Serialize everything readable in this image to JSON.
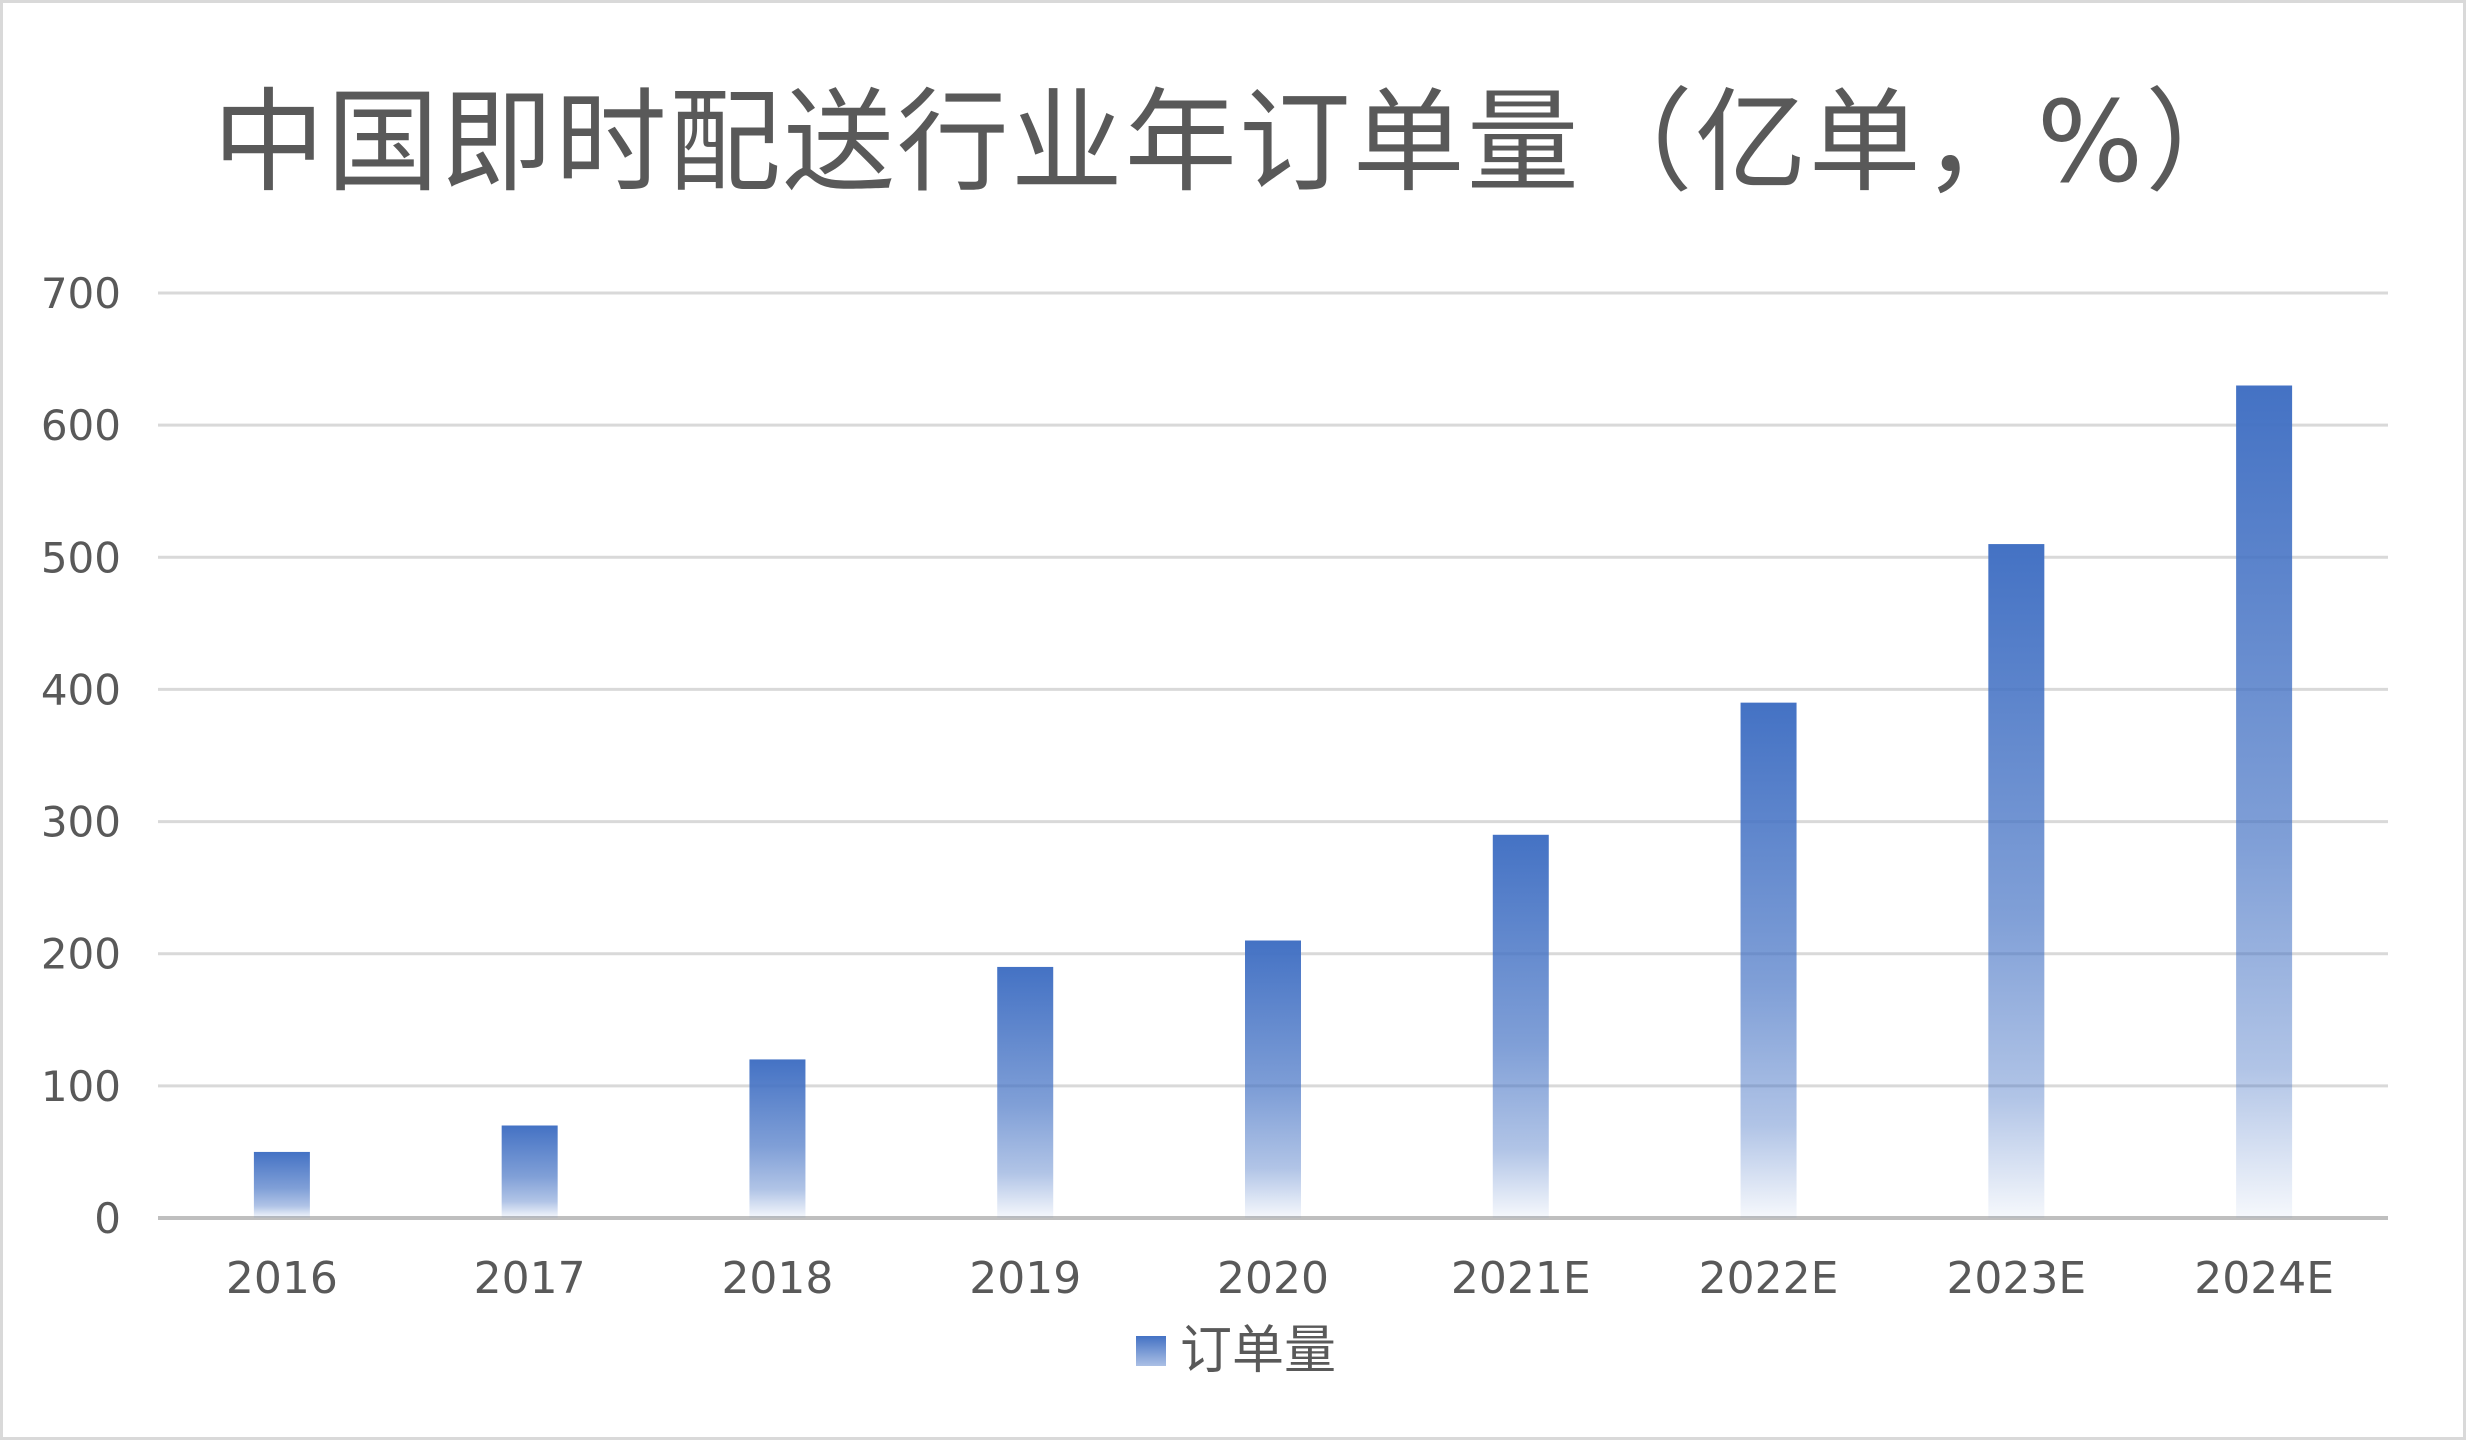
{
  "chart_data": {
    "type": "bar",
    "title": "中国即时配送行业年订单量（亿单，%）",
    "categories": [
      "2016",
      "2017",
      "2018",
      "2019",
      "2020",
      "2021E",
      "2022E",
      "2023E",
      "2024E"
    ],
    "series": [
      {
        "name": "订单量",
        "values": [
          50,
          70,
          120,
          190,
          210,
          290,
          390,
          510,
          630
        ],
        "color": "#4472C4"
      }
    ],
    "xlabel": "",
    "ylabel": "",
    "ylim": [
      0,
      700
    ],
    "yticks": [
      "0",
      "100",
      "200",
      "300",
      "400",
      "500",
      "600",
      "700"
    ],
    "grid": true,
    "legend_position": "bottom",
    "colors": {
      "bar": "#4472C4",
      "grid": "#d9d9d9",
      "axis": "#bfbfbf",
      "text": "#595959"
    }
  }
}
